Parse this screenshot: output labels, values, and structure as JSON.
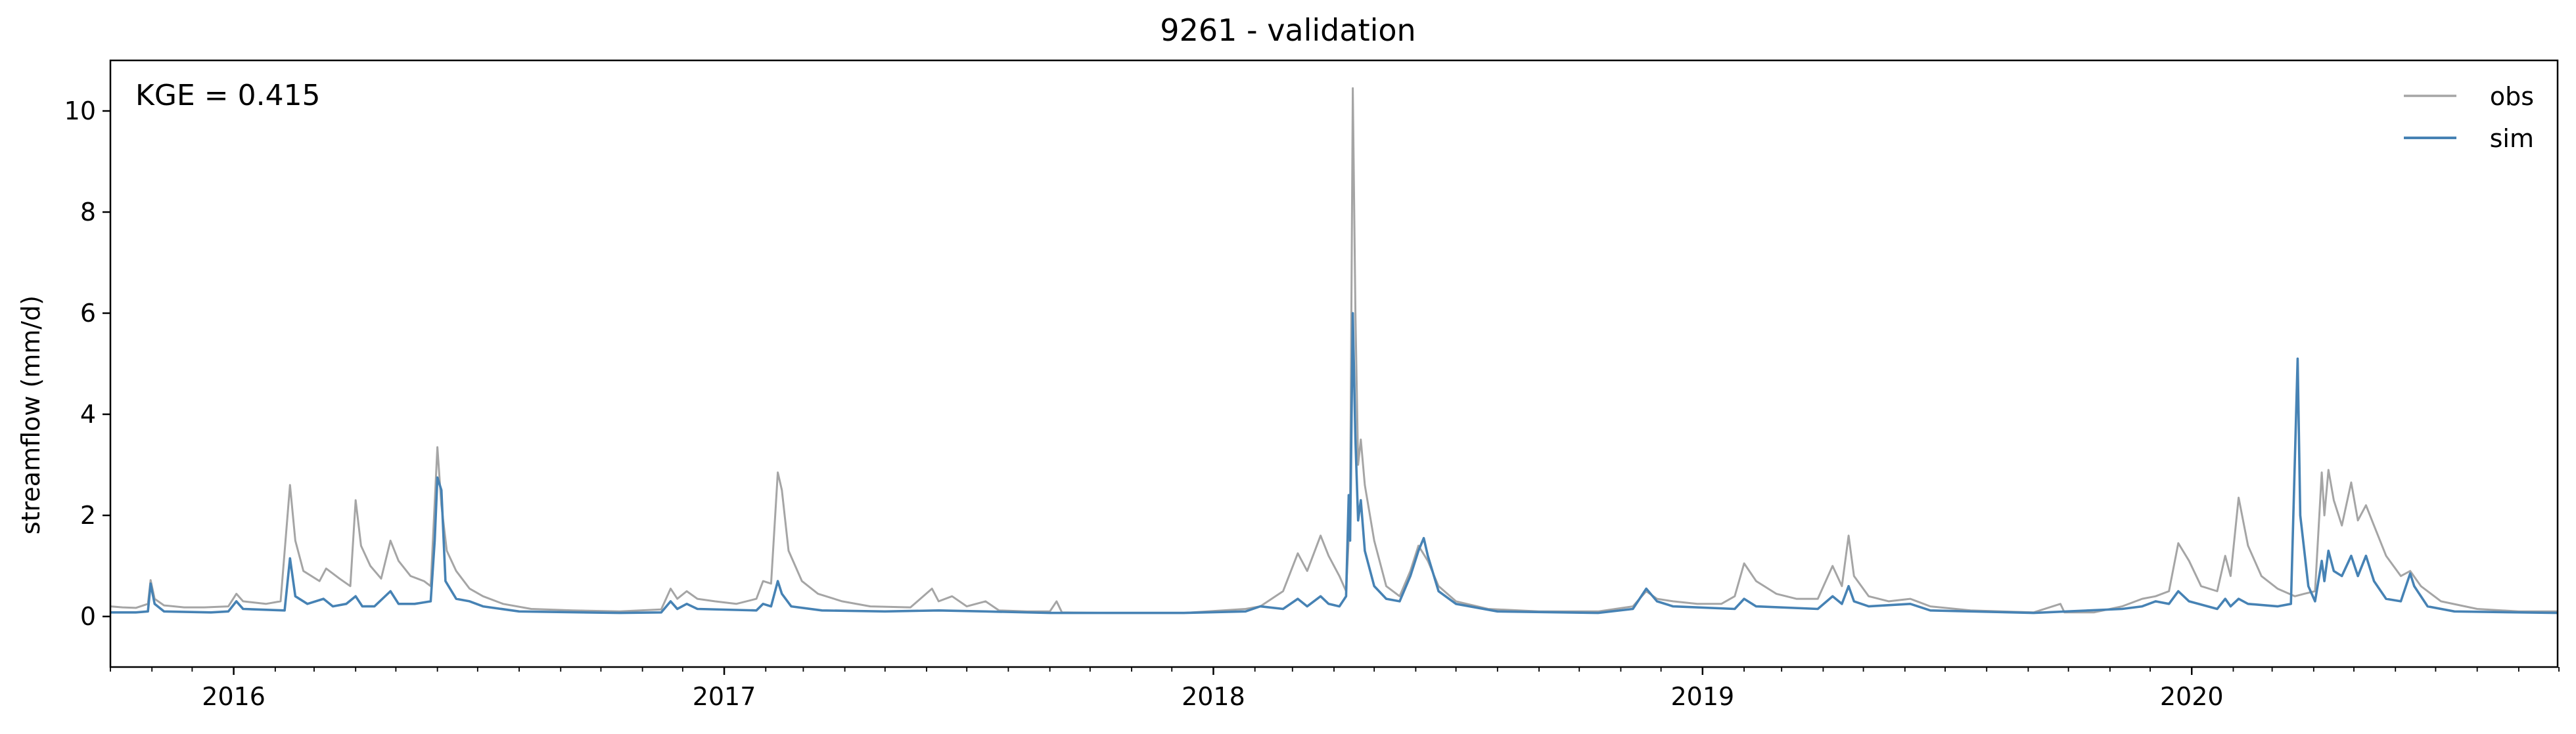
{
  "chart_data": {
    "type": "line",
    "title": "9261 - validation",
    "xlabel": "",
    "ylabel": "streamflow (mm/d)",
    "xlim": [
      "2015-10-01",
      "2020-09-30"
    ],
    "ylim": [
      -1,
      11
    ],
    "x_ticks": [
      "2016",
      "2017",
      "2018",
      "2019",
      "2020"
    ],
    "y_ticks": [
      0,
      2,
      4,
      6,
      8,
      10
    ],
    "grid": false,
    "legend_position": "top-right",
    "annotation": "KGE = 0.415",
    "series": [
      {
        "name": "obs",
        "color": "#a5a5a5",
        "points": [
          [
            "2015-10-01",
            0.2
          ],
          [
            "2015-10-10",
            0.18
          ],
          [
            "2015-10-20",
            0.17
          ],
          [
            "2015-10-29",
            0.25
          ],
          [
            "2015-10-31",
            0.72
          ],
          [
            "2015-11-03",
            0.35
          ],
          [
            "2015-11-10",
            0.22
          ],
          [
            "2015-11-25",
            0.18
          ],
          [
            "2015-12-10",
            0.18
          ],
          [
            "2015-12-28",
            0.2
          ],
          [
            "2016-01-03",
            0.45
          ],
          [
            "2016-01-08",
            0.3
          ],
          [
            "2016-01-25",
            0.25
          ],
          [
            "2016-02-05",
            0.3
          ],
          [
            "2016-02-12",
            2.6
          ],
          [
            "2016-02-16",
            1.5
          ],
          [
            "2016-02-22",
            0.9
          ],
          [
            "2016-03-05",
            0.7
          ],
          [
            "2016-03-10",
            0.95
          ],
          [
            "2016-03-20",
            0.75
          ],
          [
            "2016-03-28",
            0.6
          ],
          [
            "2016-04-01",
            2.3
          ],
          [
            "2016-04-05",
            1.4
          ],
          [
            "2016-04-12",
            1.0
          ],
          [
            "2016-04-20",
            0.75
          ],
          [
            "2016-04-27",
            1.5
          ],
          [
            "2016-05-03",
            1.1
          ],
          [
            "2016-05-12",
            0.8
          ],
          [
            "2016-05-22",
            0.7
          ],
          [
            "2016-05-27",
            0.6
          ],
          [
            "2016-06-01",
            3.35
          ],
          [
            "2016-06-04",
            2.2
          ],
          [
            "2016-06-08",
            1.3
          ],
          [
            "2016-06-15",
            0.9
          ],
          [
            "2016-06-25",
            0.55
          ],
          [
            "2016-07-05",
            0.4
          ],
          [
            "2016-07-20",
            0.25
          ],
          [
            "2016-08-10",
            0.15
          ],
          [
            "2016-09-10",
            0.12
          ],
          [
            "2016-10-15",
            0.1
          ],
          [
            "2016-11-15",
            0.14
          ],
          [
            "2016-11-22",
            0.55
          ],
          [
            "2016-11-27",
            0.35
          ],
          [
            "2016-12-04",
            0.5
          ],
          [
            "2016-12-12",
            0.35
          ],
          [
            "2016-12-25",
            0.3
          ],
          [
            "2017-01-10",
            0.25
          ],
          [
            "2017-01-25",
            0.35
          ],
          [
            "2017-01-30",
            0.7
          ],
          [
            "2017-02-05",
            0.65
          ],
          [
            "2017-02-10",
            2.85
          ],
          [
            "2017-02-13",
            2.5
          ],
          [
            "2017-02-18",
            1.3
          ],
          [
            "2017-02-28",
            0.7
          ],
          [
            "2017-03-12",
            0.45
          ],
          [
            "2017-03-30",
            0.3
          ],
          [
            "2017-04-20",
            0.2
          ],
          [
            "2017-05-20",
            0.18
          ],
          [
            "2017-06-05",
            0.55
          ],
          [
            "2017-06-10",
            0.3
          ],
          [
            "2017-06-20",
            0.4
          ],
          [
            "2017-07-01",
            0.2
          ],
          [
            "2017-07-15",
            0.3
          ],
          [
            "2017-07-25",
            0.12
          ],
          [
            "2017-08-15",
            0.1
          ],
          [
            "2017-09-01",
            0.1
          ],
          [
            "2017-09-06",
            0.3
          ],
          [
            "2017-09-10",
            0.08
          ],
          [
            "2017-10-15",
            0.07
          ],
          [
            "2017-12-10",
            0.07
          ],
          [
            "2018-01-25",
            0.15
          ],
          [
            "2018-02-05",
            0.2
          ],
          [
            "2018-02-22",
            0.5
          ],
          [
            "2018-03-05",
            1.25
          ],
          [
            "2018-03-12",
            0.9
          ],
          [
            "2018-03-22",
            1.6
          ],
          [
            "2018-03-28",
            1.2
          ],
          [
            "2018-04-05",
            0.8
          ],
          [
            "2018-04-10",
            0.5
          ],
          [
            "2018-04-13",
            2.1
          ],
          [
            "2018-04-15",
            10.45
          ],
          [
            "2018-04-17",
            6.0
          ],
          [
            "2018-04-19",
            3.0
          ],
          [
            "2018-04-21",
            3.5
          ],
          [
            "2018-04-24",
            2.6
          ],
          [
            "2018-05-01",
            1.5
          ],
          [
            "2018-05-10",
            0.6
          ],
          [
            "2018-05-20",
            0.4
          ],
          [
            "2018-05-28",
            0.9
          ],
          [
            "2018-06-03",
            1.4
          ],
          [
            "2018-06-10",
            1.1
          ],
          [
            "2018-06-18",
            0.6
          ],
          [
            "2018-07-01",
            0.3
          ],
          [
            "2018-07-25",
            0.15
          ],
          [
            "2018-09-01",
            0.1
          ],
          [
            "2018-10-15",
            0.1
          ],
          [
            "2018-11-10",
            0.2
          ],
          [
            "2018-11-20",
            0.5
          ],
          [
            "2018-11-28",
            0.35
          ],
          [
            "2018-12-10",
            0.3
          ],
          [
            "2018-12-28",
            0.25
          ],
          [
            "2019-01-15",
            0.25
          ],
          [
            "2019-01-25",
            0.4
          ],
          [
            "2019-02-01",
            1.05
          ],
          [
            "2019-02-10",
            0.7
          ],
          [
            "2019-02-25",
            0.45
          ],
          [
            "2019-03-12",
            0.35
          ],
          [
            "2019-03-28",
            0.35
          ],
          [
            "2019-04-08",
            1.0
          ],
          [
            "2019-04-15",
            0.6
          ],
          [
            "2019-04-20",
            1.6
          ],
          [
            "2019-04-24",
            0.8
          ],
          [
            "2019-05-05",
            0.4
          ],
          [
            "2019-05-20",
            0.3
          ],
          [
            "2019-06-05",
            0.35
          ],
          [
            "2019-06-20",
            0.2
          ],
          [
            "2019-07-20",
            0.12
          ],
          [
            "2019-09-05",
            0.08
          ],
          [
            "2019-09-25",
            0.25
          ],
          [
            "2019-09-28",
            0.08
          ],
          [
            "2019-10-20",
            0.08
          ],
          [
            "2019-11-10",
            0.2
          ],
          [
            "2019-11-25",
            0.35
          ],
          [
            "2019-12-05",
            0.4
          ],
          [
            "2019-12-15",
            0.5
          ],
          [
            "2019-12-22",
            1.45
          ],
          [
            "2019-12-30",
            1.1
          ],
          [
            "2020-01-08",
            0.6
          ],
          [
            "2020-01-20",
            0.5
          ],
          [
            "2020-01-26",
            1.2
          ],
          [
            "2020-01-30",
            0.8
          ],
          [
            "2020-02-05",
            2.35
          ],
          [
            "2020-02-12",
            1.4
          ],
          [
            "2020-02-22",
            0.8
          ],
          [
            "2020-03-05",
            0.55
          ],
          [
            "2020-03-18",
            0.4
          ],
          [
            "2020-03-25",
            0.45
          ],
          [
            "2020-04-02",
            0.5
          ],
          [
            "2020-04-07",
            2.85
          ],
          [
            "2020-04-09",
            2.0
          ],
          [
            "2020-04-12",
            2.9
          ],
          [
            "2020-04-16",
            2.3
          ],
          [
            "2020-04-22",
            1.8
          ],
          [
            "2020-04-29",
            2.65
          ],
          [
            "2020-05-04",
            1.9
          ],
          [
            "2020-05-10",
            2.2
          ],
          [
            "2020-05-16",
            1.8
          ],
          [
            "2020-05-25",
            1.2
          ],
          [
            "2020-06-05",
            0.8
          ],
          [
            "2020-06-12",
            0.9
          ],
          [
            "2020-06-20",
            0.6
          ],
          [
            "2020-07-05",
            0.3
          ],
          [
            "2020-08-01",
            0.15
          ],
          [
            "2020-09-01",
            0.1
          ],
          [
            "2020-09-30",
            0.1
          ]
        ]
      },
      {
        "name": "sim",
        "color": "#4682b4",
        "points": [
          [
            "2015-10-01",
            0.08
          ],
          [
            "2015-10-20",
            0.08
          ],
          [
            "2015-10-29",
            0.1
          ],
          [
            "2015-10-31",
            0.65
          ],
          [
            "2015-11-03",
            0.25
          ],
          [
            "2015-11-10",
            0.1
          ],
          [
            "2015-12-15",
            0.08
          ],
          [
            "2015-12-28",
            0.1
          ],
          [
            "2016-01-03",
            0.3
          ],
          [
            "2016-01-08",
            0.15
          ],
          [
            "2016-02-08",
            0.12
          ],
          [
            "2016-02-12",
            1.15
          ],
          [
            "2016-02-16",
            0.4
          ],
          [
            "2016-02-25",
            0.25
          ],
          [
            "2016-03-08",
            0.35
          ],
          [
            "2016-03-15",
            0.2
          ],
          [
            "2016-03-25",
            0.25
          ],
          [
            "2016-04-01",
            0.4
          ],
          [
            "2016-04-06",
            0.2
          ],
          [
            "2016-04-15",
            0.2
          ],
          [
            "2016-04-27",
            0.5
          ],
          [
            "2016-05-03",
            0.25
          ],
          [
            "2016-05-15",
            0.25
          ],
          [
            "2016-05-27",
            0.3
          ],
          [
            "2016-05-30",
            1.5
          ],
          [
            "2016-06-01",
            2.75
          ],
          [
            "2016-06-04",
            2.5
          ],
          [
            "2016-06-07",
            0.7
          ],
          [
            "2016-06-15",
            0.35
          ],
          [
            "2016-06-25",
            0.3
          ],
          [
            "2016-07-05",
            0.2
          ],
          [
            "2016-08-01",
            0.1
          ],
          [
            "2016-10-15",
            0.07
          ],
          [
            "2016-11-15",
            0.08
          ],
          [
            "2016-11-22",
            0.3
          ],
          [
            "2016-11-27",
            0.15
          ],
          [
            "2016-12-04",
            0.25
          ],
          [
            "2016-12-12",
            0.15
          ],
          [
            "2017-01-25",
            0.12
          ],
          [
            "2017-01-30",
            0.25
          ],
          [
            "2017-02-05",
            0.2
          ],
          [
            "2017-02-10",
            0.7
          ],
          [
            "2017-02-13",
            0.45
          ],
          [
            "2017-02-20",
            0.2
          ],
          [
            "2017-03-15",
            0.12
          ],
          [
            "2017-05-01",
            0.1
          ],
          [
            "2017-06-10",
            0.12
          ],
          [
            "2017-07-15",
            0.1
          ],
          [
            "2017-09-01",
            0.07
          ],
          [
            "2017-12-10",
            0.07
          ],
          [
            "2018-01-25",
            0.1
          ],
          [
            "2018-02-05",
            0.2
          ],
          [
            "2018-02-22",
            0.15
          ],
          [
            "2018-03-05",
            0.35
          ],
          [
            "2018-03-12",
            0.2
          ],
          [
            "2018-03-22",
            0.4
          ],
          [
            "2018-03-28",
            0.25
          ],
          [
            "2018-04-05",
            0.2
          ],
          [
            "2018-04-10",
            0.4
          ],
          [
            "2018-04-12",
            2.4
          ],
          [
            "2018-04-13",
            1.5
          ],
          [
            "2018-04-15",
            6.0
          ],
          [
            "2018-04-17",
            3.5
          ],
          [
            "2018-04-19",
            1.9
          ],
          [
            "2018-04-21",
            2.3
          ],
          [
            "2018-04-24",
            1.3
          ],
          [
            "2018-05-01",
            0.6
          ],
          [
            "2018-05-10",
            0.35
          ],
          [
            "2018-05-20",
            0.3
          ],
          [
            "2018-05-28",
            0.8
          ],
          [
            "2018-06-03",
            1.3
          ],
          [
            "2018-06-07",
            1.55
          ],
          [
            "2018-06-10",
            1.2
          ],
          [
            "2018-06-18",
            0.5
          ],
          [
            "2018-07-01",
            0.25
          ],
          [
            "2018-08-01",
            0.1
          ],
          [
            "2018-10-15",
            0.07
          ],
          [
            "2018-11-10",
            0.15
          ],
          [
            "2018-11-20",
            0.55
          ],
          [
            "2018-11-28",
            0.3
          ],
          [
            "2018-12-10",
            0.2
          ],
          [
            "2019-01-25",
            0.15
          ],
          [
            "2019-02-01",
            0.35
          ],
          [
            "2019-02-10",
            0.2
          ],
          [
            "2019-03-28",
            0.15
          ],
          [
            "2019-04-08",
            0.4
          ],
          [
            "2019-04-15",
            0.25
          ],
          [
            "2019-04-20",
            0.6
          ],
          [
            "2019-04-24",
            0.3
          ],
          [
            "2019-05-05",
            0.2
          ],
          [
            "2019-06-05",
            0.25
          ],
          [
            "2019-06-20",
            0.12
          ],
          [
            "2019-09-05",
            0.07
          ],
          [
            "2019-11-10",
            0.15
          ],
          [
            "2019-11-25",
            0.2
          ],
          [
            "2019-12-05",
            0.3
          ],
          [
            "2019-12-15",
            0.25
          ],
          [
            "2019-12-22",
            0.5
          ],
          [
            "2019-12-30",
            0.3
          ],
          [
            "2020-01-20",
            0.15
          ],
          [
            "2020-01-26",
            0.35
          ],
          [
            "2020-01-30",
            0.2
          ],
          [
            "2020-02-05",
            0.35
          ],
          [
            "2020-02-12",
            0.25
          ],
          [
            "2020-03-05",
            0.2
          ],
          [
            "2020-03-15",
            0.25
          ],
          [
            "2020-03-20",
            5.1
          ],
          [
            "2020-03-22",
            2.0
          ],
          [
            "2020-03-28",
            0.6
          ],
          [
            "2020-04-02",
            0.3
          ],
          [
            "2020-04-07",
            1.1
          ],
          [
            "2020-04-09",
            0.7
          ],
          [
            "2020-04-12",
            1.3
          ],
          [
            "2020-04-16",
            0.9
          ],
          [
            "2020-04-22",
            0.8
          ],
          [
            "2020-04-29",
            1.2
          ],
          [
            "2020-05-04",
            0.8
          ],
          [
            "2020-05-10",
            1.2
          ],
          [
            "2020-05-16",
            0.7
          ],
          [
            "2020-05-25",
            0.35
          ],
          [
            "2020-06-05",
            0.3
          ],
          [
            "2020-06-12",
            0.85
          ],
          [
            "2020-06-15",
            0.6
          ],
          [
            "2020-06-25",
            0.2
          ],
          [
            "2020-07-15",
            0.1
          ],
          [
            "2020-09-30",
            0.07
          ]
        ]
      }
    ]
  }
}
